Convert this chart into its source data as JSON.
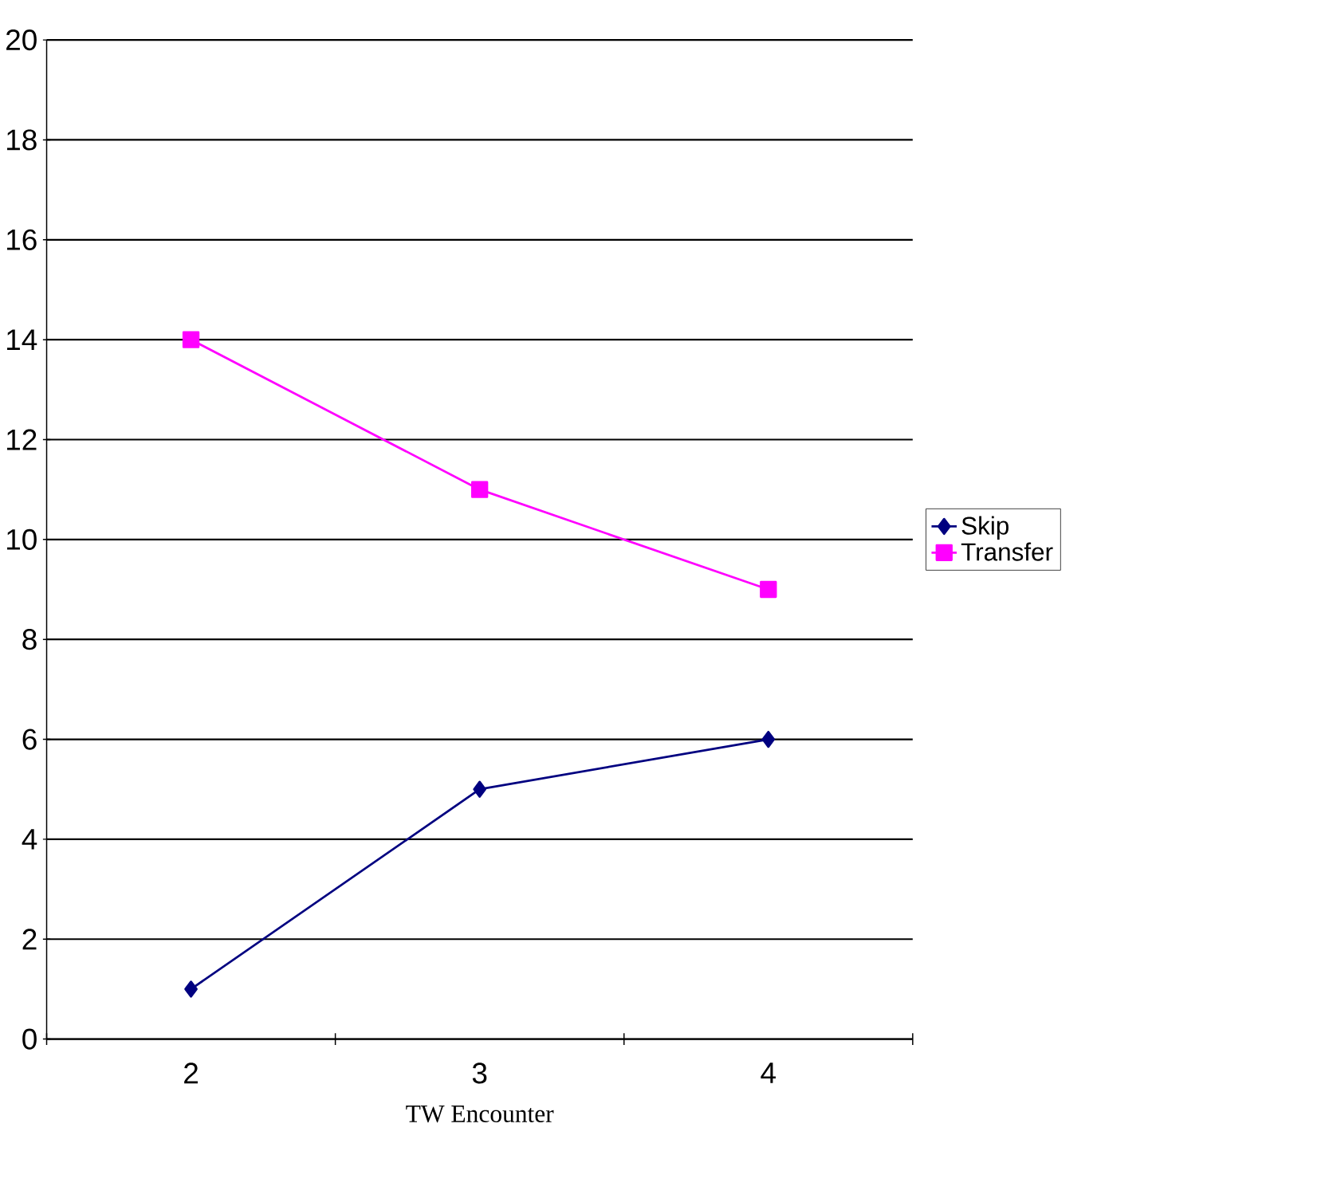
{
  "chart_data": {
    "type": "line",
    "xlabel": "TW Encounter",
    "categories": [
      "2",
      "3",
      "4"
    ],
    "series": [
      {
        "name": "Skip",
        "color": "#000080",
        "marker": "diamond",
        "values": [
          1,
          5,
          6
        ]
      },
      {
        "name": "Transfer",
        "color": "#ff00ff",
        "marker": "square",
        "values": [
          14,
          11,
          9
        ]
      }
    ],
    "ylim": [
      0,
      20
    ],
    "yticks": [
      0,
      2,
      4,
      6,
      8,
      10,
      12,
      14,
      16,
      18,
      20
    ],
    "grid": "y",
    "legend": "right",
    "line_style": "solid"
  }
}
